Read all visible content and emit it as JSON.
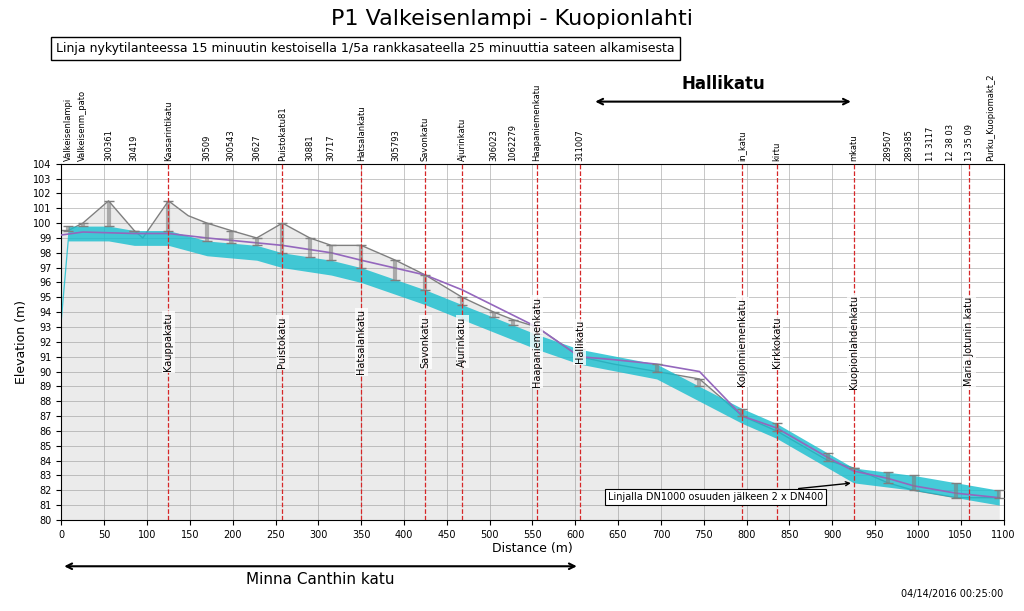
{
  "chart_data": {
    "type": "line",
    "title": "P1 Valkeisenlampi - Kuopionlahti",
    "subtitle": "Linja nykytilanteessa 15 minuutin kestoisella 1/5a rankkasateella 25 minuuttia sateen alkamisesta",
    "xlabel": "Distance (m)",
    "ylabel": "Elevation (m)",
    "timestamp": "04/14/2016 00:25:00",
    "xlim": [
      0,
      1100
    ],
    "ylim": [
      80,
      104
    ],
    "xticks": [
      0,
      50,
      100,
      150,
      200,
      250,
      300,
      350,
      400,
      450,
      500,
      550,
      600,
      650,
      700,
      750,
      800,
      850,
      900,
      950,
      1000,
      1050,
      1100
    ],
    "yticks": [
      80,
      81,
      82,
      83,
      84,
      85,
      86,
      87,
      88,
      89,
      90,
      91,
      92,
      93,
      94,
      95,
      96,
      97,
      98,
      99,
      100,
      101,
      102,
      103,
      104
    ],
    "grid": true,
    "ground_profile": {
      "x": [
        0,
        8,
        25,
        55,
        85,
        95,
        125,
        148,
        170,
        198,
        228,
        258,
        290,
        315,
        350,
        390,
        425,
        468,
        505,
        527,
        555,
        605,
        645,
        695,
        745,
        795,
        835,
        895,
        925,
        965,
        995,
        1045,
        1095
      ],
      "y": [
        99.5,
        99.5,
        100.0,
        101.5,
        99.5,
        99.0,
        101.5,
        100.5,
        100.0,
        99.5,
        99.0,
        100.0,
        99.0,
        98.5,
        98.5,
        97.5,
        96.5,
        95.0,
        94.0,
        93.5,
        93.0,
        91.0,
        90.5,
        90.0,
        89.5,
        87.0,
        86.0,
        84.0,
        83.5,
        82.5,
        82.0,
        81.5,
        81.5
      ],
      "color": "#7f7f7f"
    },
    "pipe": {
      "x": [
        0,
        8,
        25,
        55,
        85,
        125,
        170,
        228,
        258,
        315,
        350,
        425,
        468,
        555,
        605,
        695,
        795,
        835,
        895,
        925,
        995,
        1045,
        1095
      ],
      "bottom": [
        93.5,
        98.8,
        98.8,
        98.8,
        98.5,
        98.5,
        97.8,
        97.5,
        97.0,
        96.5,
        96.0,
        94.5,
        93.5,
        91.5,
        90.5,
        89.5,
        86.5,
        85.5,
        83.5,
        82.5,
        82.0,
        81.5,
        81.0
      ],
      "top": [
        94.5,
        99.8,
        99.8,
        99.8,
        99.5,
        99.5,
        98.8,
        98.5,
        98.0,
        97.5,
        97.0,
        95.5,
        94.5,
        92.5,
        91.5,
        90.5,
        87.5,
        86.5,
        84.5,
        83.5,
        83.0,
        82.5,
        82.0
      ],
      "color": "#17becf"
    },
    "hgl": {
      "x": [
        0,
        25,
        85,
        125,
        170,
        258,
        315,
        350,
        425,
        468,
        555,
        605,
        645,
        695,
        745,
        795,
        835,
        895,
        925,
        965,
        995,
        1045,
        1095
      ],
      "y": [
        99.2,
        99.4,
        99.3,
        99.3,
        99.0,
        98.5,
        98.0,
        97.5,
        96.5,
        95.5,
        93.0,
        91.0,
        90.8,
        90.5,
        90.0,
        87.0,
        86.2,
        84.2,
        83.3,
        82.8,
        82.3,
        81.8,
        81.5
      ],
      "color": "#9467bd"
    },
    "manholes": {
      "x": [
        8,
        25,
        55,
        85,
        125,
        170,
        198,
        228,
        258,
        290,
        315,
        350,
        390,
        425,
        468,
        505,
        527,
        555,
        605,
        695,
        745,
        795,
        835,
        895,
        925,
        965,
        995,
        1045,
        1095
      ],
      "y_pipe": [
        99.8,
        99.8,
        99.8,
        99.5,
        99.5,
        98.8,
        98.655,
        98.5,
        98.0,
        97.719,
        97.5,
        97.0,
        96.2,
        95.5,
        94.5,
        93.649,
        93.144,
        92.5,
        91.5,
        90.5,
        89.0,
        87.5,
        86.5,
        84.5,
        83.5,
        83.214,
        83.0,
        82.5,
        82.0
      ],
      "y_ground": [
        99.5,
        100.0,
        101.5,
        99.5,
        101.5,
        100.0,
        99.5,
        99.0,
        100.0,
        99.0,
        98.5,
        98.5,
        97.5,
        96.5,
        95.0,
        94.0,
        93.5,
        93.0,
        91.0,
        90.0,
        89.5,
        87.0,
        86.0,
        84.0,
        83.5,
        82.5,
        82.0,
        81.5,
        81.5
      ],
      "color": "#7f7f7f"
    },
    "street_lines": {
      "x": [
        125,
        258,
        350,
        425,
        468,
        555,
        605,
        795,
        835,
        925,
        1060
      ],
      "color": "#d62728",
      "line_style": "dashed"
    },
    "street_labels": [
      {
        "x": 125,
        "label": "Kauppakatu"
      },
      {
        "x": 258,
        "label": "Puistokatu"
      },
      {
        "x": 350,
        "label": "Hatsalankatu"
      },
      {
        "x": 425,
        "label": "Savonkatu"
      },
      {
        "x": 468,
        "label": "Ajurinkatu"
      },
      {
        "x": 555,
        "label": "Haapaniemenkatu"
      },
      {
        "x": 605,
        "label": "Hallikatu"
      },
      {
        "x": 795,
        "label": "Koljonniemenkatu"
      },
      {
        "x": 835,
        "label": "Kirkkokatu"
      },
      {
        "x": 925,
        "label": "Kuopionlahdenkatu"
      },
      {
        "x": 1060,
        "label": "Maria Jotunin katu"
      }
    ],
    "node_labels": [
      {
        "x": 8,
        "label": "Valkeisenlampi"
      },
      {
        "x": 25,
        "label": "Valkeisenm_pato"
      },
      {
        "x": 55,
        "label": "300361"
      },
      {
        "x": 85,
        "label": "30419"
      },
      {
        "x": 125,
        "label": "Kaasarintikatu"
      },
      {
        "x": 170,
        "label": "30509"
      },
      {
        "x": 198,
        "label": "300543"
      },
      {
        "x": 228,
        "label": "30627"
      },
      {
        "x": 258,
        "label": "Puistokatu81"
      },
      {
        "x": 290,
        "label": "30881"
      },
      {
        "x": 315,
        "label": "30717"
      },
      {
        "x": 350,
        "label": "Hatsalankatu"
      },
      {
        "x": 390,
        "label": "305793"
      },
      {
        "x": 425,
        "label": "Savonkatu"
      },
      {
        "x": 468,
        "label": "Ajurinkatu"
      },
      {
        "x": 505,
        "label": "306023"
      },
      {
        "x": 527,
        "label": "1062279"
      },
      {
        "x": 555,
        "label": "Haapaniemenkatu"
      },
      {
        "x": 605,
        "label": "311007"
      },
      {
        "x": 795,
        "label": "in_katu"
      },
      {
        "x": 835,
        "label": "kirtu"
      },
      {
        "x": 925,
        "label": "mkatu"
      },
      {
        "x": 965,
        "label": "289507"
      },
      {
        "x": 990,
        "label": "289385"
      },
      {
        "x": 1015,
        "label": "11 3117"
      },
      {
        "x": 1038,
        "label": "12 38 03"
      },
      {
        "x": 1060,
        "label": "13 35 09"
      },
      {
        "x": 1085,
        "label": "Purku_Kuopiomakt_2"
      }
    ],
    "span_below": {
      "label": "Minna Canthin katu",
      "x1": 0,
      "x2": 605
    },
    "span_above": {
      "label": "Hallikatu",
      "x1": 620,
      "x2": 925
    },
    "annotations": [
      {
        "text": "Linjalla DN1000 osuuden jälkeen 2 x DN400",
        "x": 925,
        "y": 82.5
      }
    ]
  }
}
